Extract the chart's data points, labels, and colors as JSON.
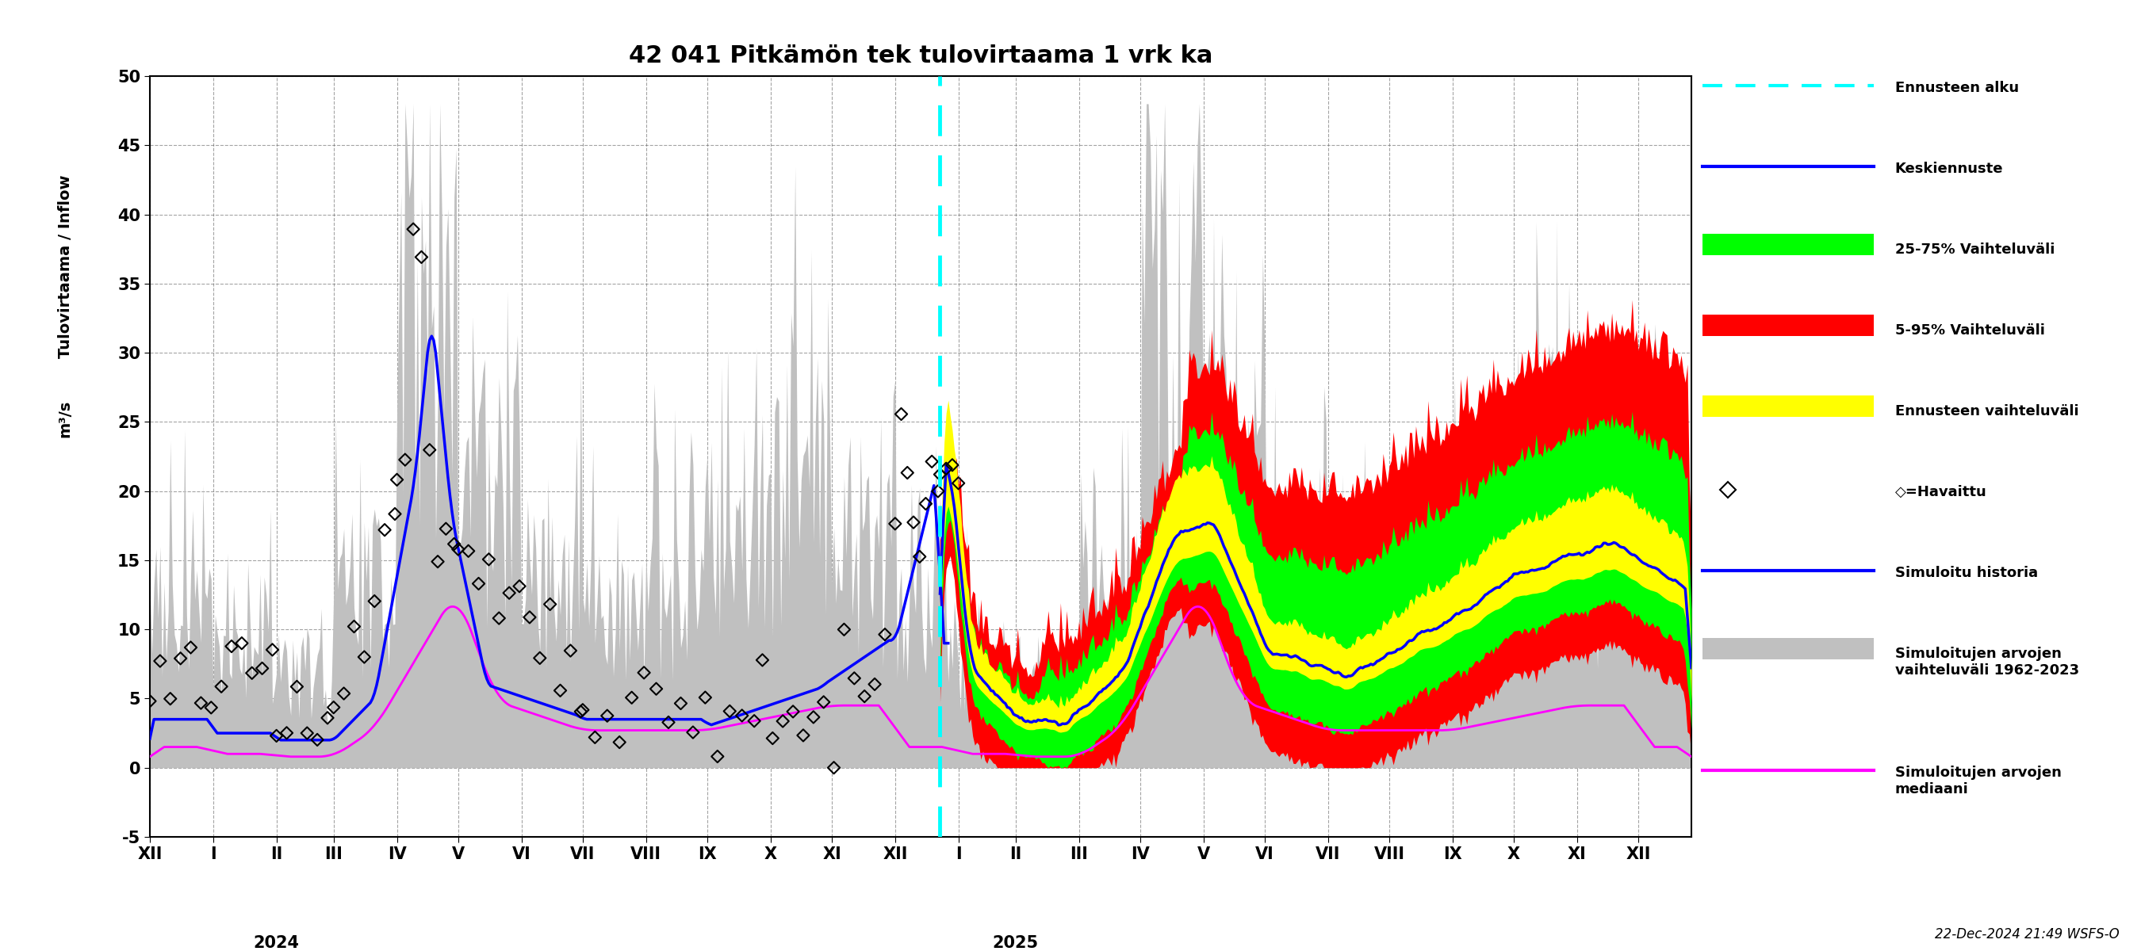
{
  "title": "42 041 Pitkämön tek tulovirtaama 1 vrk ka",
  "ylabel_line1": "Tulovirtaama / Inflow",
  "ylabel_line2": "m³/s",
  "ylim": [
    -5,
    50
  ],
  "yticks": [
    -5,
    0,
    5,
    10,
    15,
    20,
    25,
    30,
    35,
    40,
    45,
    50
  ],
  "xlabel_months": [
    "XII",
    "I",
    "II",
    "III",
    "IV",
    "V",
    "VI",
    "VII",
    "VIII",
    "IX",
    "X",
    "XI",
    "XII",
    "I",
    "II",
    "III",
    "IV",
    "V",
    "VI",
    "VII",
    "VIII",
    "IX",
    "X",
    "XI",
    "XII"
  ],
  "year_2024_label": "2024",
  "year_2025_label": "2025",
  "footnote": "22-Dec-2024 21:49 WSFS-O",
  "background_color": "#FFFFFF",
  "grid_color": "#666666",
  "colors": {
    "gray_band": "#C0C0C0",
    "red_band": "#FF0000",
    "green_band": "#00FF00",
    "yellow_band": "#FFFF00",
    "blue_line": "#0000FF",
    "magenta_line": "#FF00FF",
    "cyan_vline": "#00FFFF",
    "black_diamonds": "#000000"
  }
}
